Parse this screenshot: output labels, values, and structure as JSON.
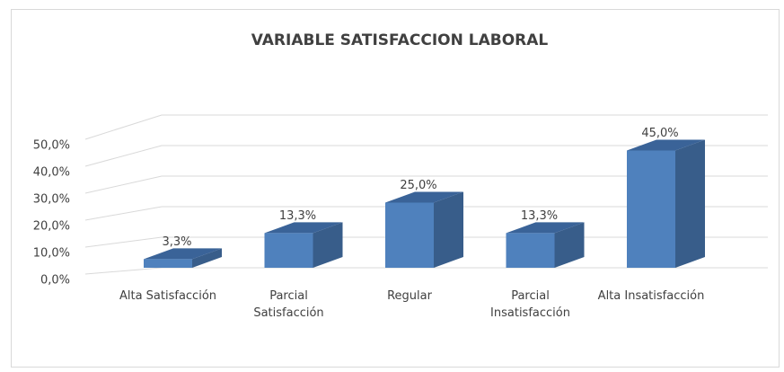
{
  "chart_data": {
    "type": "bar3d",
    "title": "VARIABLE SATISFACCION LABORAL",
    "categories": [
      "Alta Satisfacción",
      "Parcial Satisfacción",
      "Regular",
      "Parcial Insatisfacción",
      "Alta Insatisfacción"
    ],
    "values": [
      3.3,
      13.3,
      25,
      13.3,
      45
    ],
    "value_labels": [
      "3,3%",
      "13,3%",
      "25,0%",
      "13,3%",
      "45,0%"
    ],
    "color": "#4f81bd",
    "ylim": [
      0,
      50
    ],
    "yticks": [
      {
        "value": 0,
        "label": "0,0%"
      },
      {
        "value": 10,
        "label": "10,0%"
      },
      {
        "value": 20,
        "label": "20,0%"
      },
      {
        "value": 30,
        "label": "30,0%"
      },
      {
        "value": 40,
        "label": "40,0%"
      },
      {
        "value": 50,
        "label": "50,0%"
      }
    ],
    "grid": true
  }
}
